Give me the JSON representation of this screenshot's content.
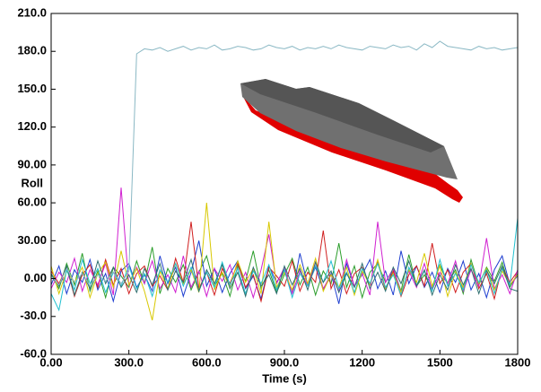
{
  "chart_data": {
    "type": "line",
    "xlabel": "Time (s)",
    "ylabel": "Roll",
    "xlim": [
      0,
      1800
    ],
    "ylim": [
      -60,
      210
    ],
    "xticks": [
      {
        "value": 0,
        "label": "0.00"
      },
      {
        "value": 300,
        "label": "300.0"
      },
      {
        "value": 600,
        "label": "600.0"
      },
      {
        "value": 900,
        "label": "900.0"
      },
      1200,
      1500,
      1800
    ],
    "yticks": [
      {
        "value": -60,
        "label": "-60.0"
      },
      {
        "value": -30,
        "label": "-30.0"
      },
      {
        "value": 0,
        "label": "0.00"
      },
      {
        "value": 30,
        "label": "30.00"
      },
      {
        "value": 60,
        "label": "60.00"
      },
      {
        "value": 90,
        "label": "90.00"
      },
      {
        "value": 120,
        "label": "120.0"
      },
      {
        "value": 150,
        "label": "150.0"
      },
      {
        "value": 180,
        "label": "180.0"
      },
      {
        "value": 210,
        "label": "210.0"
      }
    ],
    "x": [
      0,
      30,
      60,
      90,
      120,
      150,
      180,
      210,
      240,
      270,
      300,
      330,
      360,
      390,
      420,
      450,
      480,
      510,
      540,
      570,
      600,
      630,
      660,
      690,
      720,
      750,
      780,
      810,
      840,
      870,
      900,
      930,
      960,
      990,
      1020,
      1050,
      1080,
      1110,
      1140,
      1170,
      1200,
      1230,
      1260,
      1290,
      1320,
      1350,
      1380,
      1410,
      1440,
      1470,
      1500,
      1530,
      1560,
      1590,
      1620,
      1650,
      1680,
      1710,
      1740,
      1770,
      1800
    ],
    "series": [
      {
        "color": "#2a9d2a",
        "values": [
          3,
          -8,
          12,
          -5,
          20,
          -10,
          6,
          -15,
          9,
          2,
          -7,
          14,
          -4,
          25,
          -12,
          8,
          -3,
          11,
          -9,
          5,
          18,
          -6,
          4,
          -14,
          10,
          -2,
          22,
          -8,
          7,
          -11,
          3,
          16,
          -5,
          9,
          -13,
          6,
          -4,
          28,
          -7,
          10,
          -15,
          5,
          12,
          -3,
          8,
          -10,
          19,
          -6,
          3,
          -8,
          11,
          -4,
          7,
          -12,
          15,
          -5,
          9,
          -2,
          13,
          -7,
          4
        ]
      },
      {
        "color": "#1f3fd0",
        "values": [
          -5,
          10,
          -12,
          7,
          -3,
          15,
          -9,
          4,
          -18,
          6,
          12,
          -7,
          3,
          -10,
          18,
          -4,
          9,
          -14,
          5,
          30,
          -6,
          8,
          -11,
          4,
          14,
          -8,
          2,
          -16,
          10,
          -3,
          7,
          -12,
          20,
          -5,
          9,
          -9,
          4,
          -20,
          12,
          -6,
          3,
          15,
          -8,
          6,
          -13,
          22,
          -4,
          10,
          -7,
          5,
          -11,
          8,
          -3,
          14,
          -9,
          4,
          -15,
          7,
          18,
          -5,
          2
        ]
      },
      {
        "color": "#d01f1f",
        "values": [
          6,
          -4,
          9,
          -14,
          3,
          11,
          -7,
          15,
          -5,
          8,
          -12,
          4,
          10,
          -6,
          2,
          -9,
          16,
          -3,
          45,
          -8,
          5,
          -13,
          8,
          -4,
          12,
          -7,
          3,
          -18,
          9,
          2,
          -6,
          14,
          -10,
          5,
          -3,
          38,
          -8,
          7,
          -12,
          4,
          9,
          -5,
          13,
          -9,
          6,
          -14,
          3,
          10,
          -6,
          28,
          -4,
          7,
          -11,
          5,
          12,
          -8,
          4,
          -16,
          9,
          -3,
          6
        ]
      },
      {
        "color": "#d020d0",
        "values": [
          -8,
          5,
          -3,
          16,
          -10,
          7,
          -5,
          12,
          -13,
          72,
          -6,
          9,
          -4,
          14,
          -8,
          3,
          -11,
          18,
          -7,
          6,
          -14,
          8,
          -2,
          11,
          -9,
          5,
          -15,
          7,
          35,
          -4,
          9,
          -12,
          6,
          -5,
          13,
          -8,
          3,
          -10,
          15,
          -6,
          4,
          -13,
          45,
          -3,
          8,
          -11,
          6,
          -7,
          12,
          -9,
          5,
          -4,
          14,
          -10,
          7,
          -6,
          32,
          -8,
          3,
          -12,
          7
        ]
      },
      {
        "color": "#d8c800",
        "values": [
          10,
          -12,
          6,
          -3,
          9,
          -15,
          4,
          13,
          -7,
          22,
          -5,
          8,
          -10,
          -33,
          6,
          -8,
          12,
          -4,
          7,
          -11,
          60,
          -9,
          5,
          -6,
          14,
          -3,
          8,
          -12,
          45,
          -7,
          5,
          -9,
          11,
          -4,
          16,
          -10,
          3,
          -7,
          9,
          -13,
          6,
          -5,
          15,
          -8,
          4,
          -11,
          7,
          -3,
          20,
          -6,
          10,
          -14,
          5,
          -7,
          12,
          -4,
          8,
          -9,
          6,
          -5,
          3
        ]
      },
      {
        "color": "#20c0d0",
        "values": [
          -12,
          -25,
          7,
          -9,
          15,
          -4,
          8,
          -11,
          5,
          -6,
          10,
          -8,
          4,
          -14,
          7,
          -3,
          12,
          -6,
          9,
          -10,
          5,
          -7,
          13,
          -5,
          8,
          -12,
          6,
          -4,
          11,
          -9,
          7,
          -15,
          4,
          -6,
          10,
          -3,
          14,
          -8,
          5,
          -11,
          8,
          -4,
          12,
          -7,
          3,
          -13,
          9,
          -5,
          6,
          -10,
          15,
          -6,
          4,
          -9,
          11,
          -3,
          7,
          -12,
          8,
          -5,
          48
        ]
      },
      {
        "color": "#307070",
        "values": [
          4,
          -6,
          10,
          -13,
          5,
          -8,
          14,
          -4,
          9,
          -7,
          3,
          -11,
          8,
          -5,
          12,
          -9,
          6,
          -3,
          15,
          -10,
          7,
          -4,
          11,
          -8,
          5,
          -14,
          9,
          -6,
          3,
          -12,
          10,
          -5,
          8,
          -9,
          13,
          -3,
          6,
          -11,
          4,
          -7,
          12,
          -8,
          5,
          -10,
          9,
          -4,
          14,
          -6,
          7,
          -13,
          3,
          -9,
          11,
          -5,
          8,
          -12,
          6,
          -4,
          10,
          -8,
          -10
        ]
      },
      {
        "color": "#8ab8c4",
        "values": [
          2,
          -5,
          8,
          -3,
          4,
          -6,
          3,
          -2,
          5,
          -4,
          6,
          178,
          182,
          181,
          183,
          180,
          182,
          184,
          181,
          183,
          182,
          185,
          181,
          182,
          184,
          183,
          181,
          182,
          185,
          183,
          182,
          184,
          181,
          183,
          182,
          184,
          182,
          185,
          183,
          182,
          181,
          184,
          183,
          182,
          185,
          183,
          184,
          181,
          186,
          183,
          188,
          184,
          183,
          182,
          181,
          184,
          182,
          183,
          181,
          182,
          183
        ]
      }
    ]
  }
}
